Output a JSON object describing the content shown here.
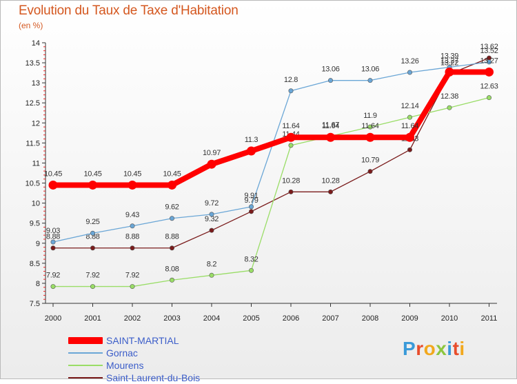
{
  "header": {
    "title": "Evolution du Taux de Taxe d'Habitation",
    "unit": "(en %)"
  },
  "logo": {
    "text": "Proxiti"
  },
  "chart_data": {
    "type": "line",
    "title": "Evolution du Taux de Taxe d'Habitation",
    "ylabel": "(en %)",
    "xlabel": "",
    "ylim": [
      7.5,
      14
    ],
    "yticks": [
      "7.5",
      "8",
      "8.5",
      "9",
      "9.5",
      "10",
      "10.5",
      "11",
      "11.5",
      "12",
      "12.5",
      "13",
      "13.5",
      "14"
    ],
    "categories": [
      "2000",
      "2001",
      "2002",
      "2003",
      "2004",
      "2005",
      "2006",
      "2007",
      "2008",
      "2009",
      "2010",
      "2011"
    ],
    "grid": false,
    "legend_position": "bottom-left",
    "series": [
      {
        "name": "Saint-Laurent-du-Bois",
        "color": "#7a1b1b",
        "values": [
          8.88,
          8.88,
          8.88,
          8.88,
          9.32,
          9.79,
          10.28,
          10.28,
          10.79,
          11.33,
          13.22,
          13.62
        ],
        "labels": [
          "8.88",
          "8.88",
          "8.88",
          "8.88",
          "9.32",
          "9.79",
          "10.28",
          "10.28",
          "10.79",
          "11.33",
          "13.22",
          "13.62"
        ]
      },
      {
        "name": "Mourens",
        "color": "#99dd66",
        "values": [
          7.92,
          7.92,
          7.92,
          8.08,
          8.2,
          8.32,
          11.44,
          11.67,
          11.9,
          12.14,
          12.38,
          12.63
        ],
        "labels": [
          "7.92",
          "7.92",
          "7.92",
          "8.08",
          "8.2",
          "8.32",
          "11.44",
          "11.67",
          "11.9",
          "12.14",
          "12.38",
          "12.63"
        ]
      },
      {
        "name": "Gornac",
        "color": "#6aa6d6",
        "values": [
          9.03,
          9.25,
          9.43,
          9.62,
          9.72,
          9.91,
          12.8,
          13.06,
          13.06,
          13.26,
          13.39,
          13.52
        ],
        "labels": [
          "9.03",
          "9.25",
          "9.43",
          "9.62",
          "9.72",
          "9.91",
          "12.8",
          "13.06",
          "13.06",
          "13.26",
          "13.39",
          "13.52"
        ]
      },
      {
        "name": "SAINT-MARTIAL",
        "color": "#ff0000",
        "values": [
          10.45,
          10.45,
          10.45,
          10.45,
          10.97,
          11.3,
          11.64,
          11.64,
          11.64,
          11.64,
          13.27,
          13.27
        ],
        "labels": [
          "10.45",
          "10.45",
          "10.45",
          "10.45",
          "10.97",
          "11.3",
          "11.64",
          "11.64",
          "11.64",
          "11.64",
          "13.27",
          "13.27"
        ]
      }
    ],
    "legend": [
      {
        "name": "SAINT-MARTIAL",
        "color": "#ff0000"
      },
      {
        "name": "Gornac",
        "color": "#6aa6d6"
      },
      {
        "name": "Mourens",
        "color": "#99dd66"
      },
      {
        "name": "Saint-Laurent-du-Bois",
        "color": "#7a1b1b"
      }
    ]
  }
}
